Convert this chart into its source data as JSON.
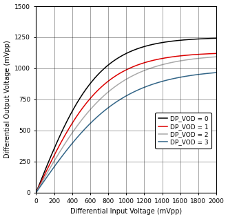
{
  "xlabel": "Differential Input Voltage (mVpp)",
  "ylabel": "Differential Output Voltage (mVpp)",
  "xlim": [
    0,
    2000
  ],
  "ylim": [
    0,
    1500
  ],
  "xticks": [
    0,
    200,
    400,
    600,
    800,
    1000,
    1200,
    1400,
    1600,
    1800,
    2000
  ],
  "yticks": [
    0,
    250,
    500,
    750,
    1000,
    1250,
    1500
  ],
  "curves": [
    {
      "label": "DP_VOD = 0",
      "color": "#000000",
      "sat": 1250,
      "k": 0.0032,
      "x_offset": 0
    },
    {
      "label": "DP_VOD = 1",
      "color": "#dd0000",
      "sat": 1130,
      "k": 0.0029,
      "x_offset": 0
    },
    {
      "label": "DP_VOD = 2",
      "color": "#aaaaaa",
      "sat": 1115,
      "k": 0.00235,
      "x_offset": 0
    },
    {
      "label": "DP_VOD = 3",
      "color": "#336688",
      "sat": 995,
      "k": 0.0019,
      "x_offset": 0
    }
  ],
  "background_color": "#ffffff",
  "legend_fontsize": 6.5,
  "axis_fontsize": 7,
  "tick_fontsize": 6.5,
  "linewidth": 1.1
}
